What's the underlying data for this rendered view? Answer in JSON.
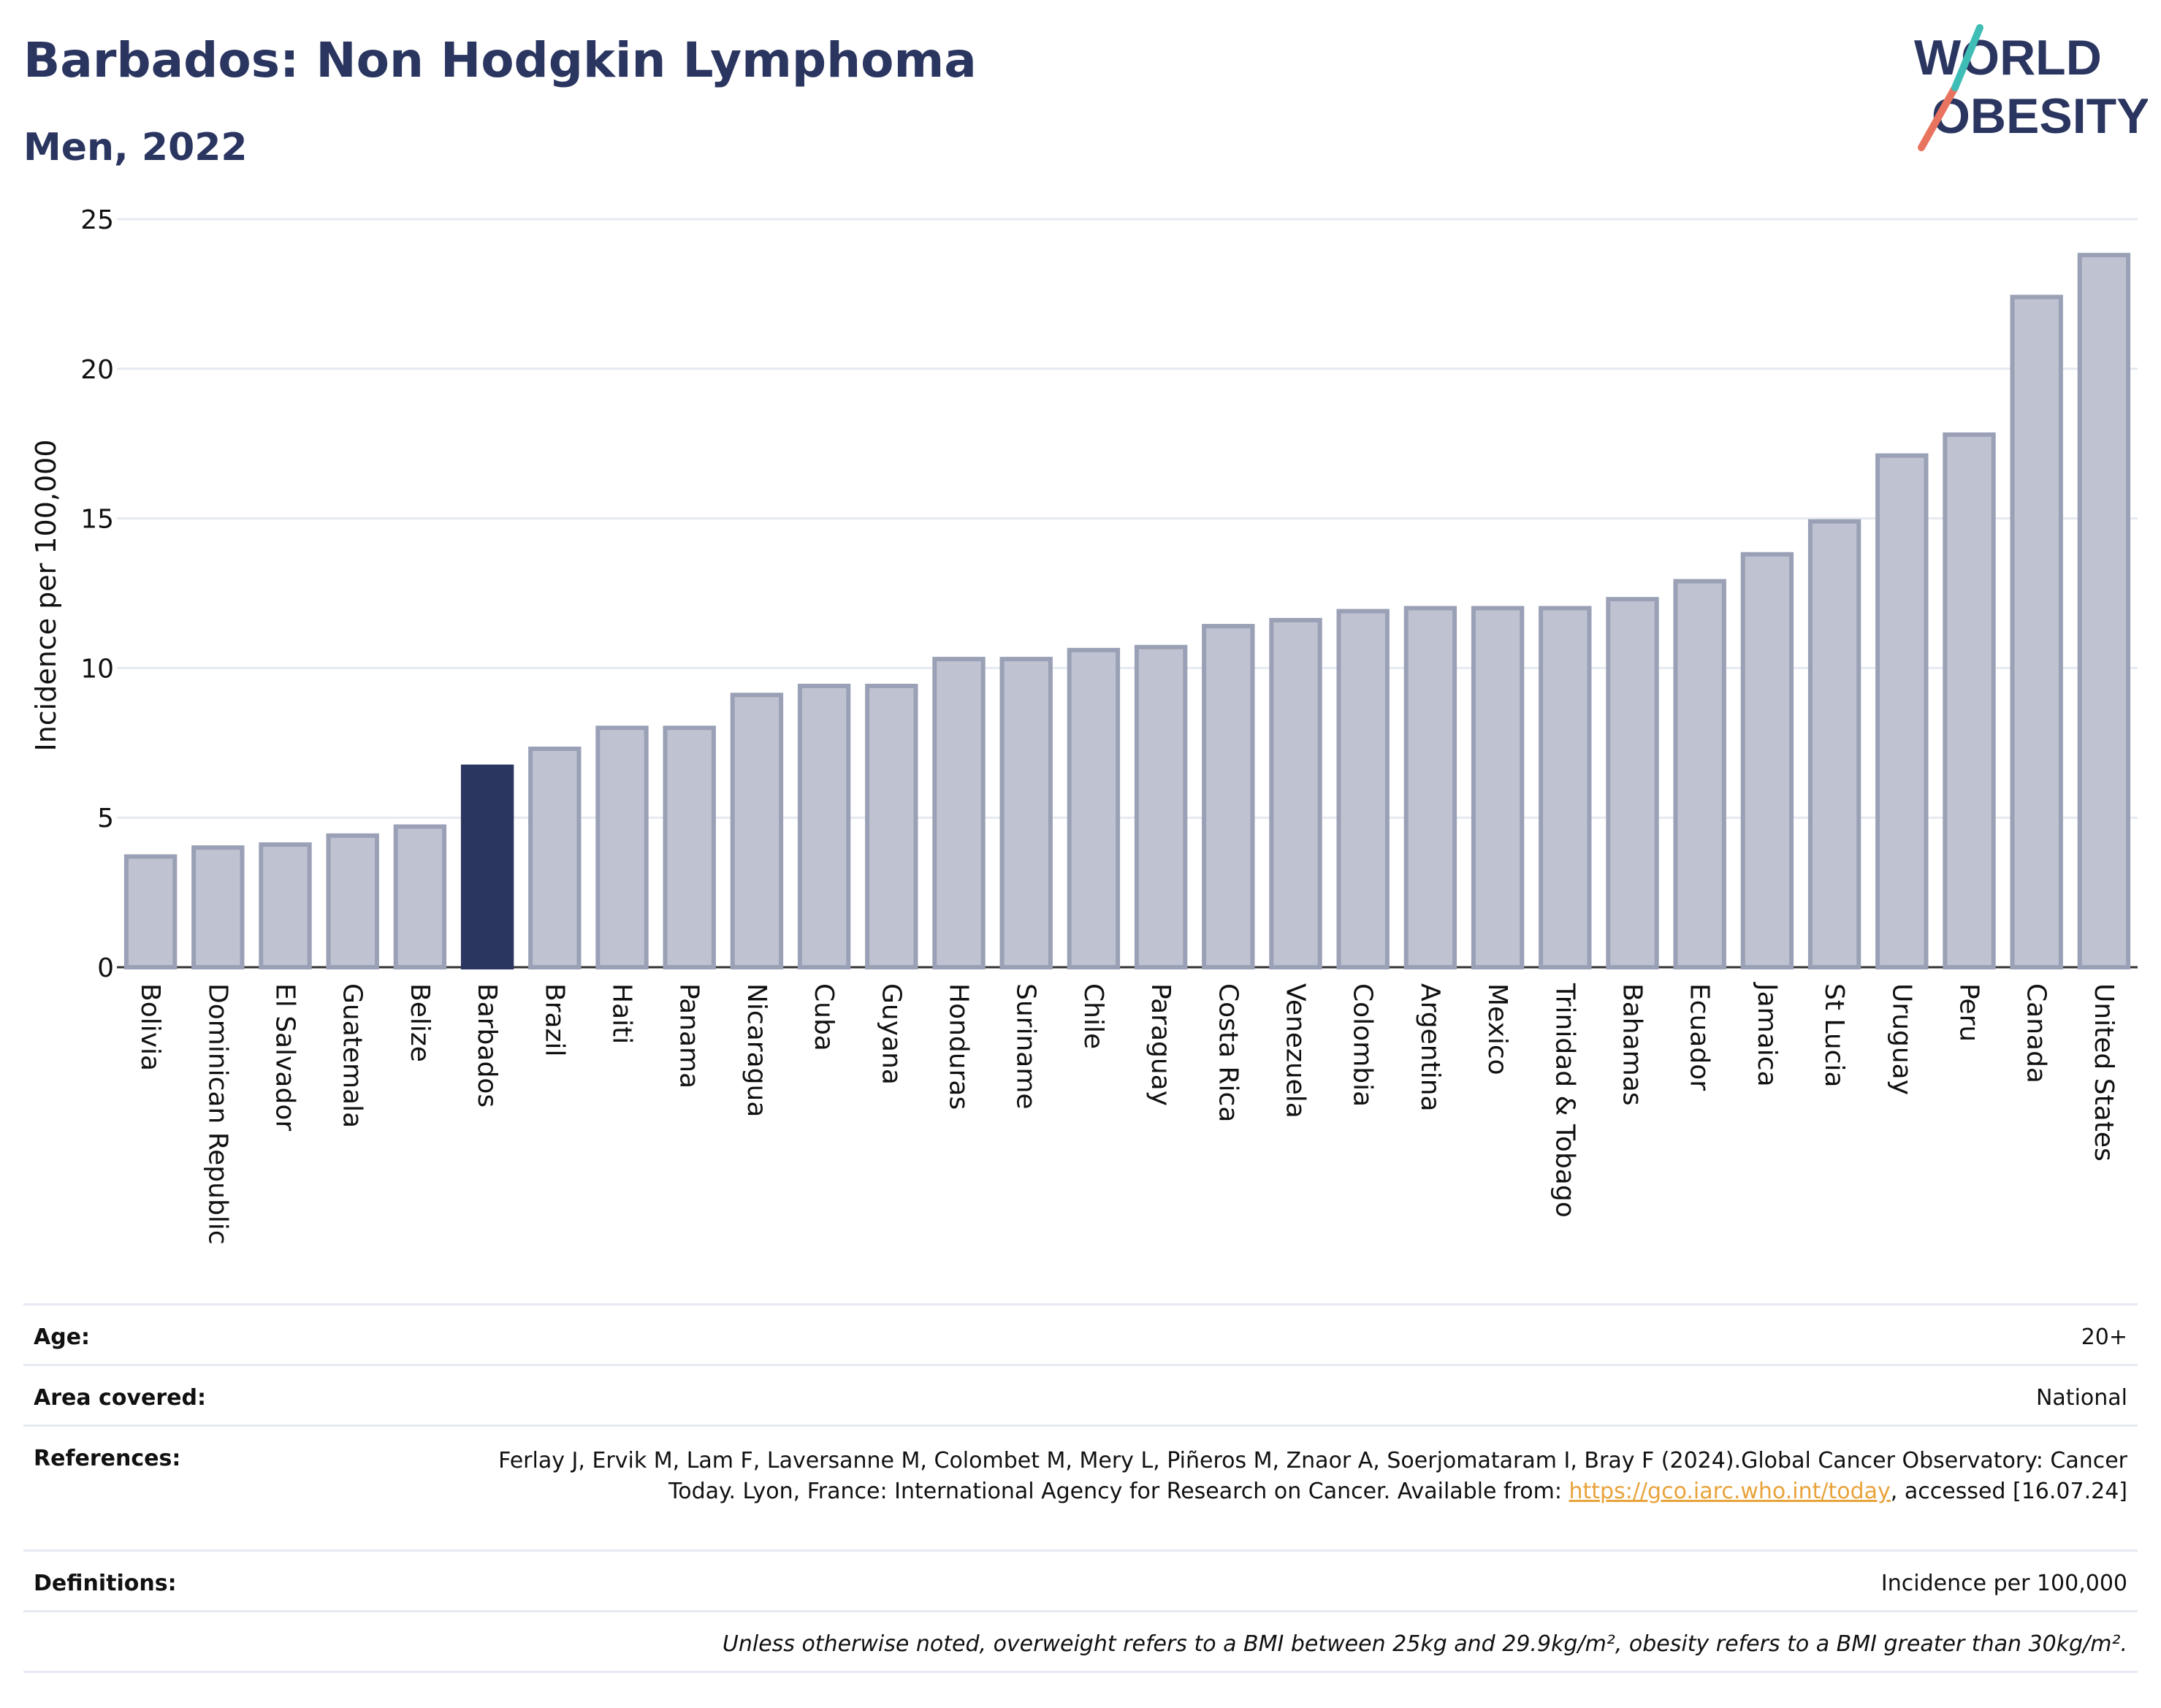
{
  "header": {
    "title": "Barbados: Non Hodgkin Lymphoma",
    "subtitle": "Men, 2022"
  },
  "logo": {
    "line1": "WORLD",
    "line2": "OBESITY"
  },
  "colors": {
    "highlight": "#2a3560",
    "bar": "#bfc3d1",
    "bar_stroke": "#9aa0b5",
    "title": "#2a3560",
    "link": "#e8a33b"
  },
  "chart_data": {
    "type": "bar",
    "title": "Barbados: Non Hodgkin Lymphoma",
    "subtitle": "Men, 2022",
    "xlabel": "",
    "ylabel": "Incidence per 100,000",
    "ylim": [
      0,
      25
    ],
    "yticks": [
      0,
      5,
      10,
      15,
      20,
      25
    ],
    "grid": true,
    "highlight": "Barbados",
    "categories": [
      "Bolivia",
      "Dominican Republic",
      "El Salvador",
      "Guatemala",
      "Belize",
      "Barbados",
      "Brazil",
      "Haiti",
      "Panama",
      "Nicaragua",
      "Cuba",
      "Guyana",
      "Honduras",
      "Suriname",
      "Chile",
      "Paraguay",
      "Costa Rica",
      "Venezuela",
      "Colombia",
      "Argentina",
      "Mexico",
      "Trinidad & Tobago",
      "Bahamas",
      "Ecuador",
      "Jamaica",
      "St Lucia",
      "Uruguay",
      "Peru",
      "Canada",
      "United States"
    ],
    "values": [
      3.7,
      4.0,
      4.1,
      4.4,
      4.7,
      6.7,
      7.3,
      8.0,
      8.0,
      9.1,
      9.4,
      9.4,
      10.3,
      10.3,
      10.6,
      10.7,
      11.4,
      11.6,
      11.9,
      12.0,
      12.0,
      12.0,
      12.3,
      12.9,
      13.8,
      14.9,
      17.1,
      17.8,
      22.4,
      23.8
    ]
  },
  "info": {
    "age_label": "Age:",
    "age_value": "20+",
    "area_label": "Area covered:",
    "area_value": "National",
    "refs_label": "References:",
    "refs_text_1": "Ferlay J, Ervik M, Lam F, Laversanne M, Colombet M, Mery L, Piñeros M, Znaor A, Soerjomataram I, Bray F (2024).Global Cancer Observatory: Cancer Today. Lyon, France: International Agency for Research on Cancer. Available from: ",
    "refs_link": "https://gco.iarc.who.int/today",
    "refs_text_2": ", accessed [16.07.24]",
    "defs_label": "Definitions:",
    "defs_value": "Incidence per 100,000",
    "note": "Unless otherwise noted, overweight refers to a BMI between 25kg and 29.9kg/m², obesity refers to a BMI greater than 30kg/m²."
  }
}
